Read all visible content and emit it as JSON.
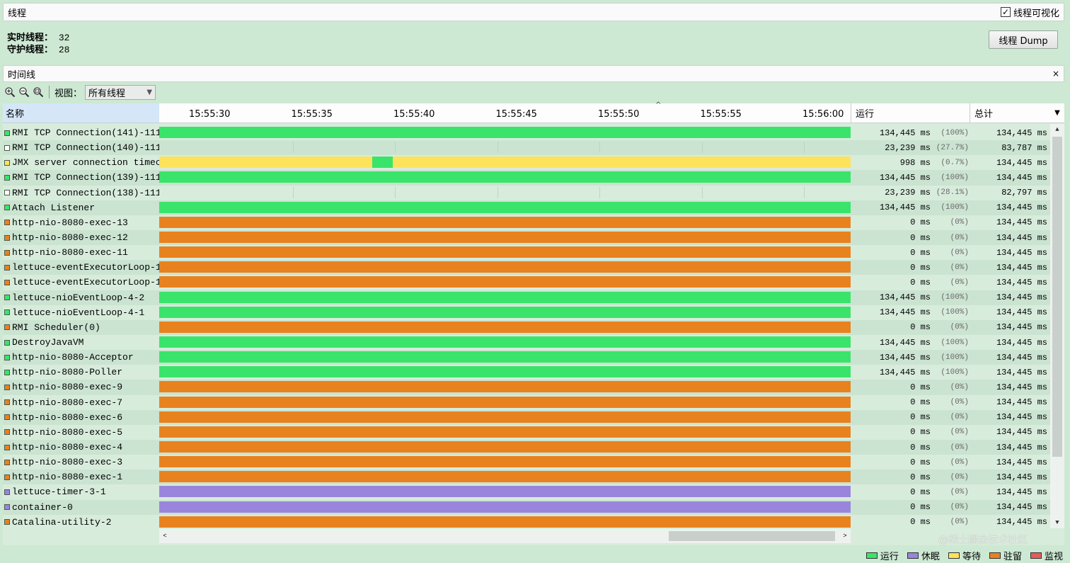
{
  "header": {
    "title": "线程",
    "visualize_label": "线程可视化",
    "visualize_checked": "✓"
  },
  "stats": {
    "live_label": "实时线程：",
    "live_value": "32",
    "daemon_label": "守护线程：",
    "daemon_value": "28"
  },
  "dump_button": "线程 Dump",
  "timeline": {
    "title": "时间线",
    "close": "×"
  },
  "toolbar": {
    "view_label": "视图：",
    "view_value": "所有线程"
  },
  "columns": {
    "name": "名称",
    "run": "运行",
    "total": "总计"
  },
  "ticks": [
    "15:55:30",
    "15:55:35",
    "15:55:40",
    "15:55:45",
    "15:55:50",
    "15:55:55",
    "15:56:00"
  ],
  "colors": {
    "running": "#3ae46a",
    "sleeping": "#9a85dc",
    "waiting": "#fde25c",
    "parked": "#e8821f",
    "monitor": "#e85b58"
  },
  "threads": [
    {
      "name": "RMI TCP Connection(141)-111",
      "run_ms": "134,445 ms",
      "run_pct": "(100%)",
      "total_ms": "134,445 ms",
      "state": "running",
      "segments": [
        {
          "state": "running",
          "from": 0,
          "to": 1
        }
      ]
    },
    {
      "name": "RMI TCP Connection(140)-111",
      "run_ms": "23,239 ms",
      "run_pct": "(27.7%)",
      "total_ms": "83,787 ms",
      "state": "none",
      "segments": []
    },
    {
      "name": "JMX server connection timec",
      "run_ms": "998 ms",
      "run_pct": "(0.7%)",
      "total_ms": "134,445 ms",
      "state": "waiting",
      "segments": [
        {
          "state": "waiting",
          "from": 0,
          "to": 0.308
        },
        {
          "state": "running",
          "from": 0.308,
          "to": 0.338
        },
        {
          "state": "waiting",
          "from": 0.338,
          "to": 1
        }
      ]
    },
    {
      "name": "RMI TCP Connection(139)-111",
      "run_ms": "134,445 ms",
      "run_pct": "(100%)",
      "total_ms": "134,445 ms",
      "state": "running",
      "segments": [
        {
          "state": "running",
          "from": 0,
          "to": 1
        }
      ]
    },
    {
      "name": "RMI TCP Connection(138)-111",
      "run_ms": "23,239 ms",
      "run_pct": "(28.1%)",
      "total_ms": "82,797 ms",
      "state": "none",
      "segments": []
    },
    {
      "name": "Attach Listener",
      "run_ms": "134,445 ms",
      "run_pct": "(100%)",
      "total_ms": "134,445 ms",
      "state": "running",
      "segments": [
        {
          "state": "running",
          "from": 0,
          "to": 1
        }
      ]
    },
    {
      "name": "http-nio-8080-exec-13",
      "run_ms": "0 ms",
      "run_pct": "(0%)",
      "total_ms": "134,445 ms",
      "state": "parked",
      "segments": [
        {
          "state": "parked",
          "from": 0,
          "to": 1
        }
      ]
    },
    {
      "name": "http-nio-8080-exec-12",
      "run_ms": "0 ms",
      "run_pct": "(0%)",
      "total_ms": "134,445 ms",
      "state": "parked",
      "segments": [
        {
          "state": "parked",
          "from": 0,
          "to": 1
        }
      ]
    },
    {
      "name": "http-nio-8080-exec-11",
      "run_ms": "0 ms",
      "run_pct": "(0%)",
      "total_ms": "134,445 ms",
      "state": "parked",
      "segments": [
        {
          "state": "parked",
          "from": 0,
          "to": 1
        }
      ]
    },
    {
      "name": "lettuce-eventExecutorLoop-1",
      "run_ms": "0 ms",
      "run_pct": "(0%)",
      "total_ms": "134,445 ms",
      "state": "parked",
      "segments": [
        {
          "state": "parked",
          "from": 0,
          "to": 1
        }
      ]
    },
    {
      "name": "lettuce-eventExecutorLoop-1",
      "run_ms": "0 ms",
      "run_pct": "(0%)",
      "total_ms": "134,445 ms",
      "state": "parked",
      "segments": [
        {
          "state": "parked",
          "from": 0,
          "to": 1
        }
      ]
    },
    {
      "name": "lettuce-nioEventLoop-4-2",
      "run_ms": "134,445 ms",
      "run_pct": "(100%)",
      "total_ms": "134,445 ms",
      "state": "running",
      "segments": [
        {
          "state": "running",
          "from": 0,
          "to": 1
        }
      ]
    },
    {
      "name": "lettuce-nioEventLoop-4-1",
      "run_ms": "134,445 ms",
      "run_pct": "(100%)",
      "total_ms": "134,445 ms",
      "state": "running",
      "segments": [
        {
          "state": "running",
          "from": 0,
          "to": 1
        }
      ]
    },
    {
      "name": "RMI Scheduler(0)",
      "run_ms": "0 ms",
      "run_pct": "(0%)",
      "total_ms": "134,445 ms",
      "state": "parked",
      "segments": [
        {
          "state": "parked",
          "from": 0,
          "to": 1
        }
      ]
    },
    {
      "name": "DestroyJavaVM",
      "run_ms": "134,445 ms",
      "run_pct": "(100%)",
      "total_ms": "134,445 ms",
      "state": "running",
      "segments": [
        {
          "state": "running",
          "from": 0,
          "to": 1
        }
      ]
    },
    {
      "name": "http-nio-8080-Acceptor",
      "run_ms": "134,445 ms",
      "run_pct": "(100%)",
      "total_ms": "134,445 ms",
      "state": "running",
      "segments": [
        {
          "state": "running",
          "from": 0,
          "to": 1
        }
      ]
    },
    {
      "name": "http-nio-8080-Poller",
      "run_ms": "134,445 ms",
      "run_pct": "(100%)",
      "total_ms": "134,445 ms",
      "state": "running",
      "segments": [
        {
          "state": "running",
          "from": 0,
          "to": 1
        }
      ]
    },
    {
      "name": "http-nio-8080-exec-9",
      "run_ms": "0 ms",
      "run_pct": "(0%)",
      "total_ms": "134,445 ms",
      "state": "parked",
      "segments": [
        {
          "state": "parked",
          "from": 0,
          "to": 1
        }
      ]
    },
    {
      "name": "http-nio-8080-exec-7",
      "run_ms": "0 ms",
      "run_pct": "(0%)",
      "total_ms": "134,445 ms",
      "state": "parked",
      "segments": [
        {
          "state": "parked",
          "from": 0,
          "to": 1
        }
      ]
    },
    {
      "name": "http-nio-8080-exec-6",
      "run_ms": "0 ms",
      "run_pct": "(0%)",
      "total_ms": "134,445 ms",
      "state": "parked",
      "segments": [
        {
          "state": "parked",
          "from": 0,
          "to": 1
        }
      ]
    },
    {
      "name": "http-nio-8080-exec-5",
      "run_ms": "0 ms",
      "run_pct": "(0%)",
      "total_ms": "134,445 ms",
      "state": "parked",
      "segments": [
        {
          "state": "parked",
          "from": 0,
          "to": 1
        }
      ]
    },
    {
      "name": "http-nio-8080-exec-4",
      "run_ms": "0 ms",
      "run_pct": "(0%)",
      "total_ms": "134,445 ms",
      "state": "parked",
      "segments": [
        {
          "state": "parked",
          "from": 0,
          "to": 1
        }
      ]
    },
    {
      "name": "http-nio-8080-exec-3",
      "run_ms": "0 ms",
      "run_pct": "(0%)",
      "total_ms": "134,445 ms",
      "state": "parked",
      "segments": [
        {
          "state": "parked",
          "from": 0,
          "to": 1
        }
      ]
    },
    {
      "name": "http-nio-8080-exec-1",
      "run_ms": "0 ms",
      "run_pct": "(0%)",
      "total_ms": "134,445 ms",
      "state": "parked",
      "segments": [
        {
          "state": "parked",
          "from": 0,
          "to": 1
        }
      ]
    },
    {
      "name": "lettuce-timer-3-1",
      "run_ms": "0 ms",
      "run_pct": "(0%)",
      "total_ms": "134,445 ms",
      "state": "sleeping",
      "segments": [
        {
          "state": "sleeping",
          "from": 0,
          "to": 1
        }
      ]
    },
    {
      "name": "container-0",
      "run_ms": "0 ms",
      "run_pct": "(0%)",
      "total_ms": "134,445 ms",
      "state": "sleeping",
      "segments": [
        {
          "state": "sleeping",
          "from": 0,
          "to": 1
        }
      ]
    },
    {
      "name": "Catalina-utility-2",
      "run_ms": "0 ms",
      "run_pct": "(0%)",
      "total_ms": "134,445 ms",
      "state": "parked",
      "segments": [
        {
          "state": "parked",
          "from": 0,
          "to": 1
        }
      ]
    }
  ],
  "legend": [
    {
      "label": "运行",
      "state": "running"
    },
    {
      "label": "休眠",
      "state": "sleeping"
    },
    {
      "label": "等待",
      "state": "waiting"
    },
    {
      "label": "驻留",
      "state": "parked"
    },
    {
      "label": "监视",
      "state": "monitor"
    }
  ],
  "watermark": "@稀土掘金技术社区"
}
